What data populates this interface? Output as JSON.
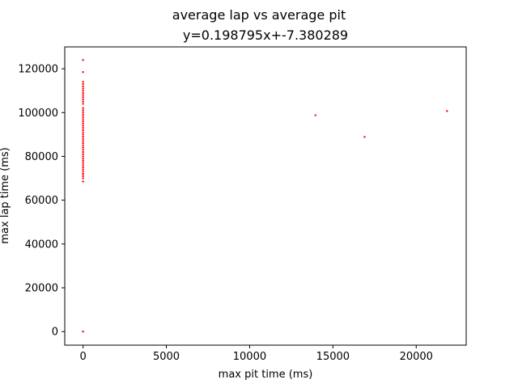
{
  "chart_data": {
    "type": "scatter",
    "title": "average lap vs average pit",
    "subtitle": "y=0.198795x+-7.380289",
    "xlabel": "max pit time (ms)",
    "ylabel": "max lap time (ms)",
    "xlim": [
      -1100,
      23000
    ],
    "ylim": [
      -6200,
      130000
    ],
    "x_ticks": [
      0,
      5000,
      10000,
      15000,
      20000
    ],
    "x_tick_labels": [
      "0",
      "5000",
      "10000",
      "15000",
      "20000"
    ],
    "y_ticks": [
      0,
      20000,
      40000,
      60000,
      80000,
      100000,
      120000
    ],
    "y_tick_labels": [
      "0",
      "20000",
      "40000",
      "60000",
      "80000",
      "100000",
      "120000"
    ],
    "grid": false,
    "marker_color": "#ff0000",
    "series": [
      {
        "points": [
          [
            0,
            0
          ],
          [
            0,
            124000
          ],
          [
            0,
            118500
          ],
          [
            0,
            114000
          ],
          [
            0,
            113000
          ],
          [
            0,
            112000
          ],
          [
            0,
            111000
          ],
          [
            0,
            110000
          ],
          [
            0,
            109000
          ],
          [
            0,
            108000
          ],
          [
            0,
            107000
          ],
          [
            0,
            106000
          ],
          [
            0,
            105000
          ],
          [
            0,
            104000
          ],
          [
            0,
            102000
          ],
          [
            0,
            101000
          ],
          [
            0,
            100000
          ],
          [
            0,
            99000
          ],
          [
            0,
            98000
          ],
          [
            0,
            97000
          ],
          [
            0,
            96000
          ],
          [
            0,
            95000
          ],
          [
            0,
            94000
          ],
          [
            0,
            93000
          ],
          [
            0,
            92000
          ],
          [
            0,
            91000
          ],
          [
            0,
            90000
          ],
          [
            0,
            89000
          ],
          [
            0,
            88000
          ],
          [
            0,
            87000
          ],
          [
            0,
            86000
          ],
          [
            0,
            85000
          ],
          [
            0,
            84000
          ],
          [
            0,
            83000
          ],
          [
            0,
            82000
          ],
          [
            0,
            81000
          ],
          [
            0,
            80000
          ],
          [
            0,
            79000
          ],
          [
            0,
            78000
          ],
          [
            0,
            77000
          ],
          [
            0,
            76000
          ],
          [
            0,
            75000
          ],
          [
            0,
            74000
          ],
          [
            0,
            73000
          ],
          [
            0,
            72000
          ],
          [
            0,
            71000
          ],
          [
            0,
            70000
          ],
          [
            0,
            68500
          ],
          [
            13950,
            98800
          ],
          [
            16900,
            88900
          ],
          [
            21850,
            100700
          ]
        ]
      }
    ]
  }
}
